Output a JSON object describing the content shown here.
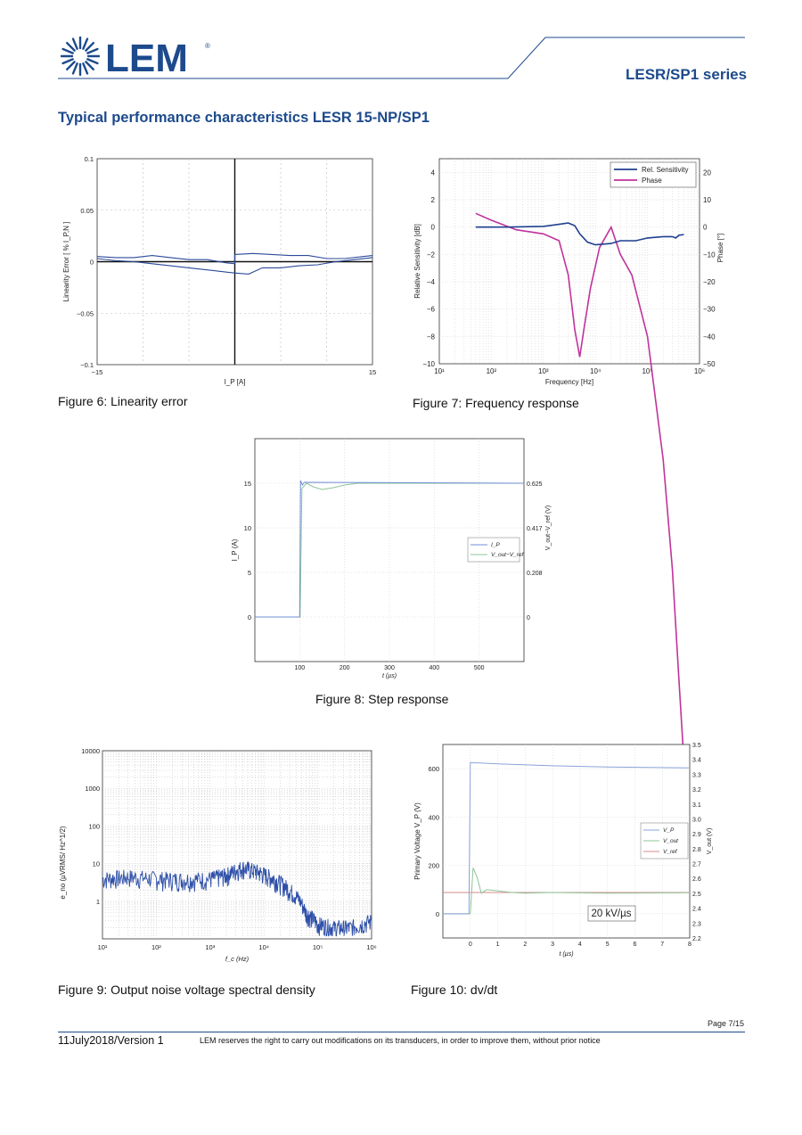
{
  "header": {
    "logo_text": "LEM",
    "logo_mark": "®",
    "series": "LESR/SP1 series",
    "brand_color": "#1d4a8c"
  },
  "section_title": "Typical performance characteristics LESR 15-NP/SP1",
  "figures": {
    "fig6": "Figure 6: Linearity error",
    "fig7": "Figure 7: Frequency response",
    "fig8": "Figure 8: Step response",
    "fig9": "Figure 9: Output noise voltage spectral density",
    "fig10": "Figure 10: dv/dt"
  },
  "footer": {
    "page": "Page 7/15",
    "date": "11July2018/Version 1",
    "note": "LEM reserves the right to carry out modifications on its transducers, in order to improve them, without prior notice"
  },
  "chart_data": [
    {
      "id": "fig6",
      "type": "line",
      "xlabel": "I_P [A]",
      "ylabel": "Linearity Error [ % I_P,N ]",
      "xlim": [
        -15,
        15
      ],
      "ylim": [
        -0.1,
        0.1
      ],
      "xticks": [
        "−15",
        "15"
      ],
      "yticks": [
        "0.1",
        "0.05",
        "0",
        "−0.05",
        "−0.1"
      ],
      "grid": true,
      "series": [
        {
          "values": [
            [
              -15,
              0.005
            ],
            [
              -13,
              0.004
            ],
            [
              -11,
              0.004
            ],
            [
              -9,
              0.006
            ],
            [
              -7,
              0.004
            ],
            [
              -5,
              0.002
            ],
            [
              -3,
              0.002
            ],
            [
              -1,
              -0.001
            ],
            [
              0,
              -0.002
            ],
            [
              0,
              0.007
            ],
            [
              2,
              0.008
            ],
            [
              4,
              0.007
            ],
            [
              6,
              0.006
            ],
            [
              8,
              0.006
            ],
            [
              10,
              0.003
            ],
            [
              12,
              0.003
            ],
            [
              14,
              0.005
            ],
            [
              15,
              0.006
            ]
          ]
        },
        {
          "values": [
            [
              -15,
              0.003
            ],
            [
              -13,
              0.001
            ],
            [
              -11,
              0.0
            ],
            [
              -9,
              -0.002
            ],
            [
              -7,
              -0.004
            ],
            [
              -5,
              -0.006
            ],
            [
              -3,
              -0.008
            ],
            [
              -1,
              -0.01
            ],
            [
              0,
              -0.011
            ],
            [
              1.5,
              -0.012
            ],
            [
              3,
              -0.006
            ],
            [
              5,
              -0.006
            ],
            [
              7,
              -0.004
            ],
            [
              9,
              -0.003
            ],
            [
              11,
              0.0
            ],
            [
              13,
              0.002
            ],
            [
              15,
              0.004
            ]
          ]
        }
      ]
    },
    {
      "id": "fig7",
      "type": "line",
      "xlabel": "Frequency [Hz]",
      "ylabel": "Relative Sensitivity [dB]",
      "y2label": "Phase [°]",
      "xscale": "log",
      "xlim": [
        10,
        1000000
      ],
      "ylim": [
        -10,
        5
      ],
      "y2lim": [
        -50,
        25
      ],
      "yticks": [
        "4",
        "2",
        "0",
        "−2",
        "−4",
        "−6",
        "−8",
        "−10"
      ],
      "y2ticks": [
        "20",
        "10",
        "0",
        "−10",
        "−20",
        "−30",
        "−40",
        "−50"
      ],
      "xticks": [
        "10¹",
        "10²",
        "10³",
        "10⁴",
        "10⁵",
        "10⁶"
      ],
      "legend": "top-right",
      "series": [
        {
          "name": "Rel. Sensitivity",
          "color": "#1f3f8f",
          "values": [
            [
              50,
              0.0
            ],
            [
              200,
              0.0
            ],
            [
              1000,
              0.05
            ],
            [
              2000,
              0.2
            ],
            [
              3000,
              0.3
            ],
            [
              4000,
              0.1
            ],
            [
              5000,
              -0.5
            ],
            [
              7000,
              -1.1
            ],
            [
              10000,
              -1.3
            ],
            [
              20000,
              -1.2
            ],
            [
              30000,
              -1.0
            ],
            [
              60000,
              -1.0
            ],
            [
              100000,
              -0.8
            ],
            [
              200000,
              -0.7
            ],
            [
              300000,
              -0.7
            ],
            [
              350000,
              -0.8
            ],
            [
              400000,
              -0.6
            ],
            [
              500000,
              -0.55
            ]
          ]
        },
        {
          "name": "Phase",
          "color": "#c0339c",
          "values": [
            [
              50,
              1.0
            ],
            [
              100,
              0.5
            ],
            [
              300,
              -0.2
            ],
            [
              1000,
              -0.5
            ],
            [
              2000,
              -1.0
            ],
            [
              3000,
              -3.5
            ],
            [
              4000,
              -7.5
            ],
            [
              5000,
              -9.5
            ],
            [
              6000,
              -7.5
            ],
            [
              8000,
              -4.5
            ],
            [
              12000,
              -1.5
            ],
            [
              20000,
              0.0
            ],
            [
              30000,
              -2.0
            ],
            [
              50000,
              -3.5
            ],
            [
              100000,
              -8.0
            ],
            [
              200000,
              -17.0
            ],
            [
              300000,
              -25.0
            ],
            [
              400000,
              -33.0
            ],
            [
              500000,
              -39.0
            ]
          ]
        }
      ]
    },
    {
      "id": "fig8",
      "type": "line",
      "xlabel": "t (µs)",
      "ylabel": "I_P (A)",
      "y2label": "V_out−V_ref (V)",
      "xlim": [
        0,
        600
      ],
      "ylim": [
        -5,
        20
      ],
      "xticks": [
        "100",
        "200",
        "300",
        "400",
        "500"
      ],
      "yticks": [
        "15",
        "10",
        "5",
        "0"
      ],
      "y2ticks": [
        "0.625",
        "0.417",
        "0.208",
        "0"
      ],
      "legend": "right",
      "series": [
        {
          "name": "I_P",
          "color": "#6f8fd6",
          "values": [
            [
              0,
              0
            ],
            [
              100,
              0
            ],
            [
              102,
              15.3
            ],
            [
              106,
              14.8
            ],
            [
              110,
              15.1
            ],
            [
              600,
              15.0
            ]
          ]
        },
        {
          "name": "V_out−V_ref",
          "color": "#8fc49a",
          "values": [
            [
              0,
              0
            ],
            [
              101,
              0
            ],
            [
              105,
              14.4
            ],
            [
              115,
              15.0
            ],
            [
              130,
              14.6
            ],
            [
              150,
              14.3
            ],
            [
              175,
              14.5
            ],
            [
              200,
              14.8
            ],
            [
              230,
              15.0
            ],
            [
              600,
              15.0
            ]
          ]
        }
      ]
    },
    {
      "id": "fig9",
      "type": "line",
      "xlabel": "f_c (Hz)",
      "ylabel": "e_no (µVRMS/ Hz^1/2)",
      "xscale": "log",
      "yscale": "log",
      "xlim": [
        10,
        1000000
      ],
      "ylim": [
        0.1,
        10000
      ],
      "xticks": [
        "10¹",
        "10²",
        "10³",
        "10⁴",
        "10⁵",
        "10⁶"
      ],
      "yticks": [
        "10000",
        "1000",
        "100",
        "10",
        "1"
      ],
      "series": [
        {
          "color": "#2d4fa8",
          "values": [
            [
              10,
              4
            ],
            [
              30,
              4.5
            ],
            [
              100,
              4
            ],
            [
              300,
              3.8
            ],
            [
              1000,
              4
            ],
            [
              2000,
              5
            ],
            [
              4000,
              8
            ],
            [
              8000,
              6
            ],
            [
              15000,
              4
            ],
            [
              30000,
              2
            ],
            [
              60000,
              0.5
            ],
            [
              100000,
              0.25
            ],
            [
              200000,
              0.2
            ],
            [
              400000,
              0.2
            ],
            [
              1000000,
              0.3
            ]
          ]
        }
      ]
    },
    {
      "id": "fig10",
      "type": "line",
      "xlabel": "t (µs)",
      "ylabel": "Primary Voltage V_P (V)",
      "y2label": "V_out (V)",
      "xlim": [
        -1,
        8
      ],
      "ylim": [
        -100,
        700
      ],
      "y2lim": [
        2.2,
        3.5
      ],
      "xticks": [
        "0",
        "1",
        "2",
        "3",
        "4",
        "5",
        "6",
        "7",
        "8"
      ],
      "yticks": [
        "600",
        "400",
        "200",
        "0"
      ],
      "y2ticks": [
        "3.5",
        "3.4",
        "3.3",
        "3.2",
        "3.1",
        "3.0",
        "2.9",
        "2.8",
        "2.7",
        "2.6",
        "2.5",
        "2.4",
        "2.3",
        "2.2"
      ],
      "legend": "right",
      "annotation": "20 kV/µs",
      "series": [
        {
          "name": "V_P",
          "color": "#8aa2da",
          "values": [
            [
              -1,
              0
            ],
            [
              -0.05,
              0
            ],
            [
              0,
              625
            ],
            [
              1,
              620
            ],
            [
              3,
              612
            ],
            [
              5,
              607
            ],
            [
              8,
              603
            ]
          ]
        },
        {
          "name": "V_out",
          "color": "#8fc49a",
          "values": [
            [
              -1,
              0
            ],
            [
              0,
              0
            ],
            [
              0.1,
              190
            ],
            [
              0.25,
              150
            ],
            [
              0.4,
              85
            ],
            [
              0.6,
              100
            ],
            [
              1,
              95
            ],
            [
              1.5,
              88
            ],
            [
              2,
              85
            ],
            [
              3,
              88
            ],
            [
              5,
              85
            ],
            [
              8,
              87
            ]
          ]
        },
        {
          "name": "V_ref",
          "color": "#d98a8a",
          "values": [
            [
              -1,
              88
            ],
            [
              8,
              88
            ]
          ]
        }
      ]
    }
  ]
}
